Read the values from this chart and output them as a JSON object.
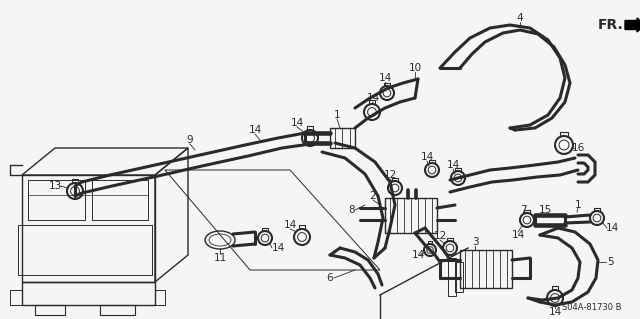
{
  "background_color": "#f5f5f5",
  "line_color": "#2a2a2a",
  "diagram_code": "S04A-81730",
  "diagram_suffix": "B",
  "fr_label": "FR.",
  "figwidth": 6.4,
  "figheight": 3.19,
  "dpi": 100,
  "label_fontsize": 7.5,
  "bold_label_fontsize": 8.5,
  "fr_fontsize": 10,
  "code_fontsize": 6,
  "lw_hose": 2.2,
  "lw_thin": 1.0,
  "lw_clamp": 1.5
}
